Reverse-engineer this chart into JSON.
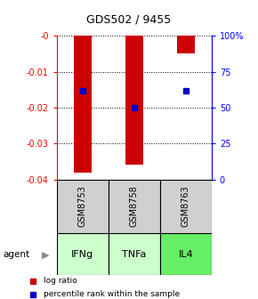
{
  "title": "GDS502 / 9455",
  "samples": [
    "GSM8753",
    "GSM8758",
    "GSM8763"
  ],
  "agents": [
    "IFNg",
    "TNFa",
    "IL4"
  ],
  "log_ratios": [
    -0.038,
    -0.036,
    -0.005
  ],
  "percentile_ranks": [
    62,
    50,
    62
  ],
  "left_ylim": [
    -0.04,
    0.0
  ],
  "right_ylim": [
    0,
    100
  ],
  "left_yticks": [
    0.0,
    -0.01,
    -0.02,
    -0.03,
    -0.04
  ],
  "left_yticklabels": [
    "-0",
    "-0.01",
    "-0.02",
    "-0.03",
    "-0.04"
  ],
  "right_yticks": [
    0,
    25,
    50,
    75,
    100
  ],
  "right_yticklabels": [
    "0",
    "25",
    "50",
    "75",
    "100%"
  ],
  "bar_color": "#cc0000",
  "dot_color": "#0000cc",
  "agent_colors": [
    "#ccffcc",
    "#ccffcc",
    "#66ee66"
  ],
  "sample_box_color": "#d0d0d0",
  "legend_items": [
    "log ratio",
    "percentile rank within the sample"
  ],
  "bar_width": 0.35
}
